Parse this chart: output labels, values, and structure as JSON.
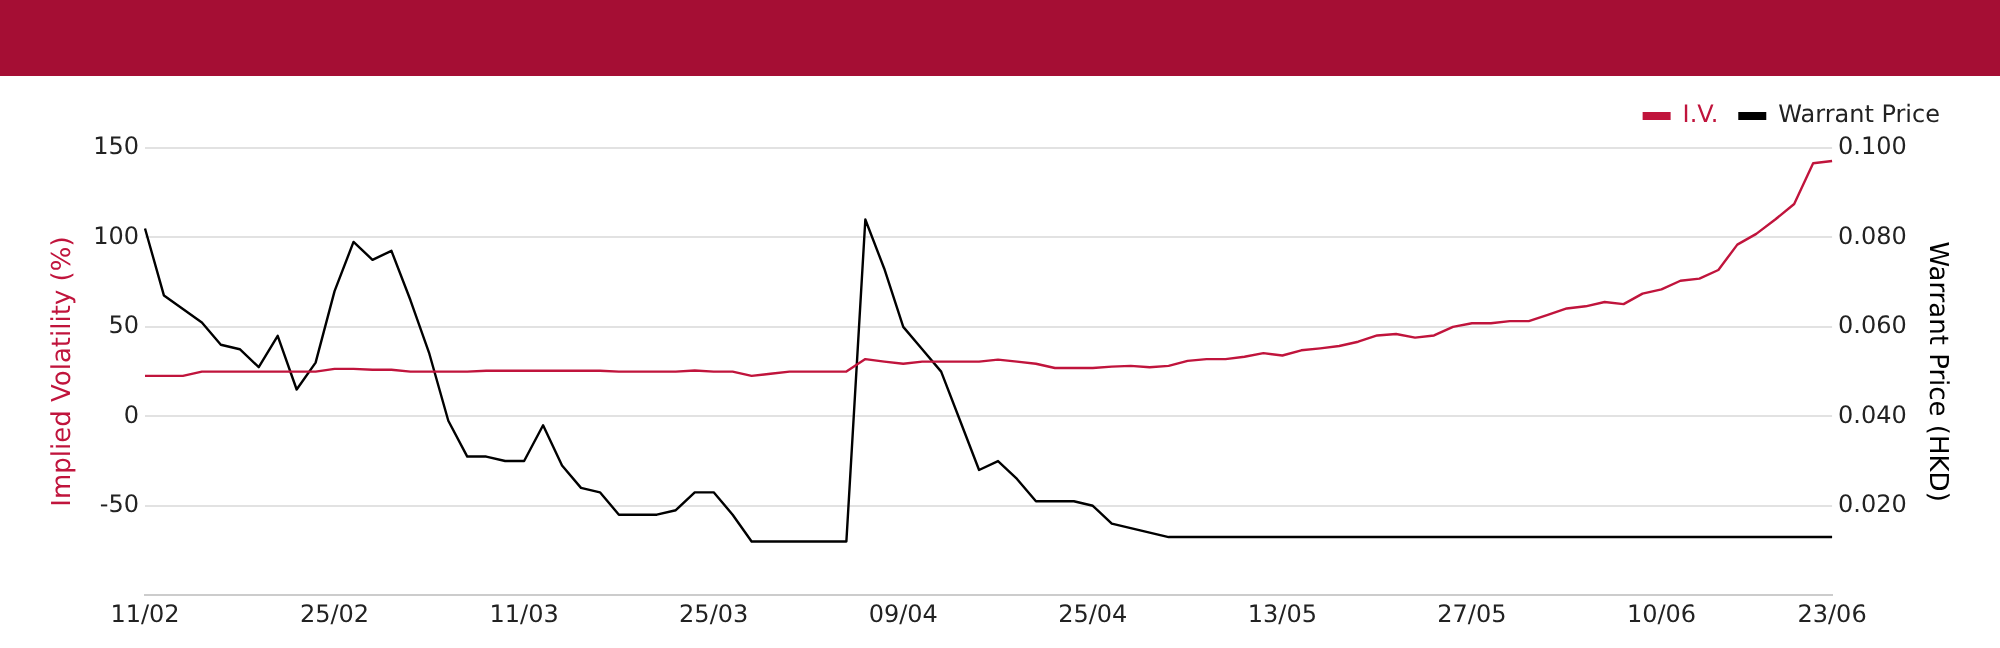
{
  "chart_data": {
    "type": "line",
    "categories": [
      "11/02",
      null,
      null,
      null,
      null,
      null,
      null,
      null,
      null,
      null,
      "25/02",
      null,
      null,
      null,
      null,
      null,
      null,
      null,
      null,
      null,
      "11/03",
      null,
      null,
      null,
      null,
      null,
      null,
      null,
      null,
      null,
      "25/03",
      null,
      null,
      null,
      null,
      null,
      null,
      null,
      null,
      null,
      "09/04",
      null,
      null,
      null,
      null,
      null,
      null,
      null,
      null,
      null,
      "25/04",
      null,
      null,
      null,
      null,
      null,
      null,
      null,
      null,
      null,
      "13/05",
      null,
      null,
      null,
      null,
      null,
      null,
      null,
      null,
      null,
      "27/05",
      null,
      null,
      null,
      null,
      null,
      null,
      null,
      null,
      null,
      "10/06",
      null,
      null,
      null,
      null,
      null,
      null,
      null,
      null,
      "23/06"
    ],
    "series": [
      {
        "name": "I.V.",
        "color": "#c0143c",
        "axis": "y",
        "values": [
          22.6,
          22.6,
          22.6,
          25,
          25,
          25,
          25,
          25,
          25,
          25,
          26.5,
          26.5,
          26,
          26,
          25,
          25,
          25,
          25,
          25.5,
          25.5,
          25.5,
          25.5,
          25.5,
          25.5,
          25.5,
          25,
          25,
          25,
          25,
          25.6,
          25,
          25,
          22.6,
          23.8,
          25,
          25,
          25,
          25,
          32,
          30.6,
          29.4,
          30.6,
          30.6,
          30.6,
          30.6,
          31.7,
          30.6,
          29.4,
          27,
          27,
          27,
          27.8,
          28.2,
          27.4,
          28.2,
          31,
          32,
          32,
          33.3,
          35.3,
          34,
          36.9,
          38,
          39.3,
          41.7,
          45.2,
          46,
          44,
          45.2,
          50,
          52,
          52,
          53.2,
          53.2,
          56.7,
          60.3,
          61.5,
          63.9,
          62.7,
          68.6,
          71,
          75.8,
          77,
          81.8,
          96,
          102,
          110,
          118.7,
          141.5,
          142.7
        ]
      },
      {
        "name": "Warrant Price",
        "color": "#000000",
        "axis": "y2",
        "values": [
          0.082,
          0.067,
          0.064,
          0.061,
          0.056,
          0.055,
          0.051,
          0.058,
          0.046,
          0.052,
          0.068,
          0.079,
          0.075,
          0.077,
          0.066,
          0.054,
          0.039,
          0.031,
          0.031,
          0.03,
          0.03,
          0.038,
          0.029,
          0.024,
          0.023,
          0.018,
          0.018,
          0.018,
          0.019,
          0.023,
          0.023,
          0.018,
          0.012,
          0.012,
          0.012,
          0.012,
          0.012,
          0.012,
          0.084,
          0.073,
          0.06,
          0.055,
          0.05,
          0.039,
          0.028,
          0.03,
          0.026,
          0.021,
          0.021,
          0.021,
          0.02,
          0.016,
          0.015,
          0.014,
          0.013,
          0.013,
          0.013,
          0.013,
          0.013,
          0.013,
          0.013,
          0.013,
          0.013,
          0.013,
          0.013,
          0.013,
          0.013,
          0.013,
          0.013,
          0.013,
          0.013,
          0.013,
          0.013,
          0.013,
          0.013,
          0.013,
          0.013,
          0.013,
          0.013,
          0.013,
          0.013,
          0.013,
          0.013,
          0.013,
          0.013,
          0.013,
          0.013,
          0.013,
          0.013,
          0.013
        ]
      }
    ],
    "ylabel": "Implied Volatility (%)",
    "y2label": "Warrant Price (HKD)",
    "ylim": [
      -100,
      150
    ],
    "yticks": [
      -50,
      0,
      50,
      100,
      150
    ],
    "y2lim": [
      0,
      0.1
    ],
    "y2ticks": [
      {
        "value": 0.02,
        "label": "0.020"
      },
      {
        "value": 0.04,
        "label": "0.040"
      },
      {
        "value": 0.06,
        "label": "0.060"
      },
      {
        "value": 0.08,
        "label": "0.080"
      },
      {
        "value": 0.1,
        "label": "0.100"
      }
    ],
    "grid": "y",
    "legend": "top right",
    "marker": "none",
    "line_style": "solid"
  }
}
